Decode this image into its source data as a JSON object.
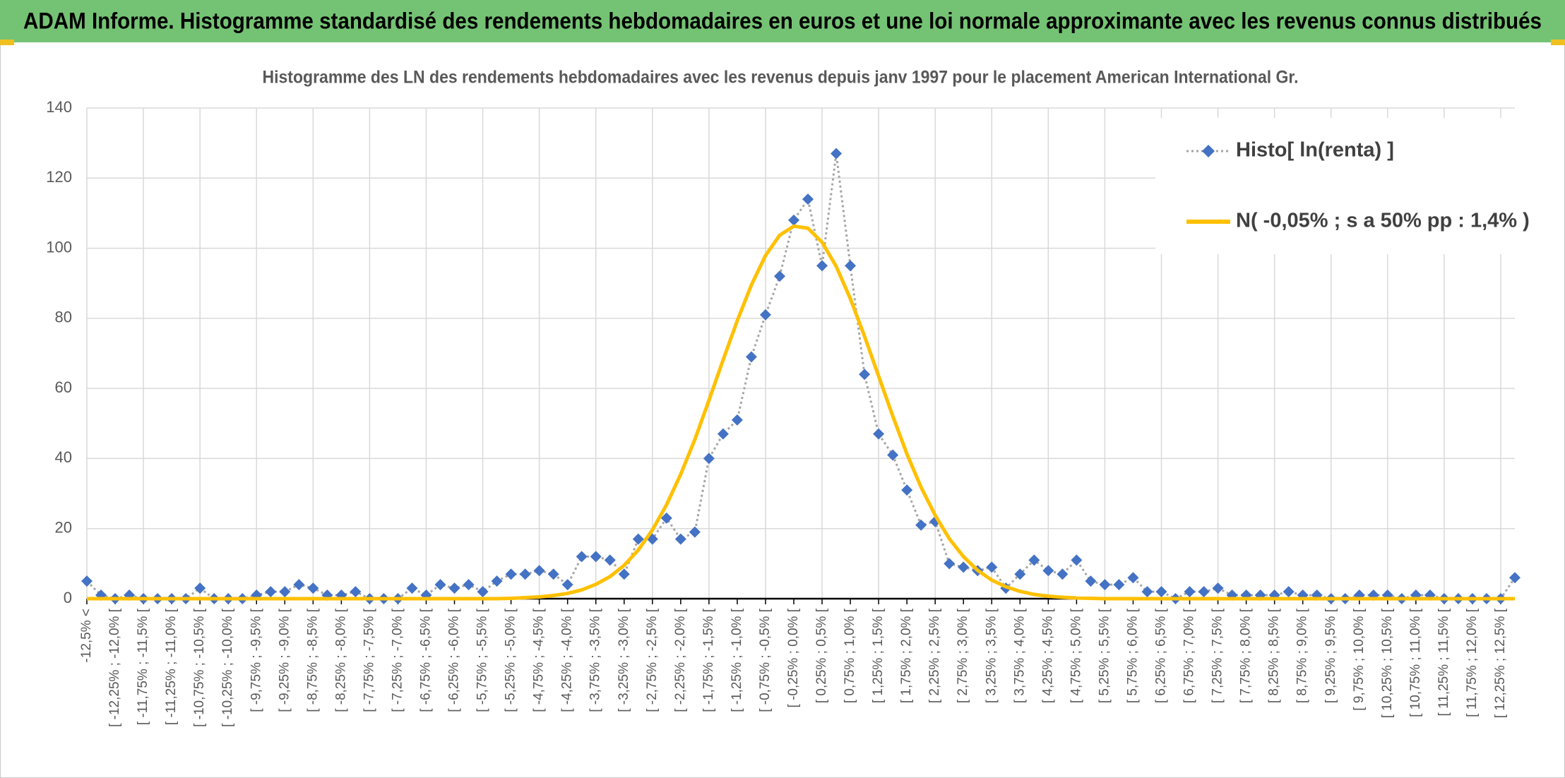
{
  "chart_data": {
    "type": "line",
    "title": "ADAM Informe. Histogramme standardisé des rendements hebdomadaires en euros et une loi normale approximante avec les revenus connus distribués",
    "subtitle": "Histogramme des LN des rendements hebdomadaires avec les revenus depuis janv 1997 pour le placement American International Gr.",
    "categories": [
      "-12,5% <",
      null,
      "[ -12,25% ; -12,0% [",
      null,
      "[ -11,75% ; -11,5% [",
      null,
      "[ -11,25% ; -11,0% [",
      null,
      "[ -10,75% ; -10,5% [",
      null,
      "[ -10,25% ; -10,0% [",
      null,
      "[ -9,75% ; -9,5% [",
      null,
      "[ -9,25% ; -9,0% [",
      null,
      "[ -8,75% ; -8,5% [",
      null,
      "[ -8,25% ; -8,0% [",
      null,
      "[ -7,75% ; -7,5% [",
      null,
      "[ -7,25% ; -7,0% [",
      null,
      "[ -6,75% ; -6,5% [",
      null,
      "[ -6,25% ; -6,0% [",
      null,
      "[ -5,75% ; -5,5% [",
      null,
      "[ -5,25% ; -5,0% [",
      null,
      "[ -4,75% ; -4,5% [",
      null,
      "[ -4,25% ; -4,0% [",
      null,
      "[ -3,75% ; -3,5% [",
      null,
      "[ -3,25% ; -3,0% [",
      null,
      "[ -2,75% ; -2,5% [",
      null,
      "[ -2,25% ; -2,0% [",
      null,
      "[ -1,75% ; -1,5% [",
      null,
      "[ -1,25% ; -1,0% [",
      null,
      "[ -0,75% ; -0,5% [",
      null,
      "[ -0,25% ; 0,0% [",
      null,
      "[ 0,25% ; 0,5% [",
      null,
      "[ 0,75% ; 1,0% [",
      null,
      "[ 1,25% ; 1,5% [",
      null,
      "[ 1,75% ; 2,0% [",
      null,
      "[ 2,25% ; 2,5% [",
      null,
      "[ 2,75% ; 3,0% [",
      null,
      "[ 3,25% ; 3,5% [",
      null,
      "[ 3,75% ; 4,0% [",
      null,
      "[ 4,25% ; 4,5% [",
      null,
      "[ 4,75% ; 5,0% [",
      null,
      "[ 5,25% ; 5,5% [",
      null,
      "[ 5,75% ; 6,0% [",
      null,
      "[ 6,25% ; 6,5% [",
      null,
      "[ 6,75% ; 7,0% [",
      null,
      "[ 7,25% ; 7,5% [",
      null,
      "[ 7,75% ; 8,0% [",
      null,
      "[ 8,25% ; 8,5% [",
      null,
      "[ 8,75% ; 9,0% [",
      null,
      "[ 9,25% ; 9,5% [",
      null,
      "[ 9,75% ; 10,0% [",
      null,
      "[ 10,25% ; 10,5% [",
      null,
      "[ 10,75% ; 11,0% [",
      null,
      "[ 11,25% ; 11,5% [",
      null,
      "[ 11,75% ; 12,0% [",
      null,
      "[ 12,25% ; 12,5% [",
      null
    ],
    "series": [
      {
        "name": "Histo[ ln(renta) ]",
        "color": "#4472c4",
        "line_color": "#a5a5a5",
        "marker": "diamond",
        "line_style": "dotted",
        "values": [
          5,
          1,
          0,
          1,
          0,
          0,
          0,
          0,
          3,
          0,
          0,
          0,
          1,
          2,
          2,
          4,
          3,
          1,
          1,
          2,
          0,
          0,
          0,
          3,
          1,
          4,
          3,
          4,
          2,
          5,
          7,
          7,
          8,
          7,
          4,
          12,
          12,
          11,
          7,
          17,
          17,
          23,
          17,
          19,
          40,
          47,
          51,
          69,
          81,
          92,
          108,
          114,
          95,
          127,
          95,
          64,
          47,
          41,
          31,
          21,
          22,
          10,
          9,
          8,
          9,
          3,
          7,
          11,
          8,
          7,
          11,
          5,
          4,
          4,
          6,
          2,
          2,
          0,
          2,
          2,
          3,
          1,
          1,
          1,
          1,
          2,
          1,
          1,
          0,
          0,
          1,
          1,
          1,
          0,
          1,
          1,
          0,
          0,
          0,
          0,
          0,
          6
        ]
      },
      {
        "name": "N( -0,05% ; s a 50% pp : 1,4% )",
        "color": "#ffc000",
        "line_style": "solid",
        "values": [
          0,
          0,
          0,
          0,
          0,
          0,
          0,
          0,
          0,
          0,
          0,
          0,
          0,
          0,
          0,
          0,
          0,
          0,
          0,
          0,
          0,
          0,
          0,
          0,
          0,
          0,
          0,
          0,
          0,
          0,
          0.1,
          0.3,
          0.5,
          0.9,
          1.5,
          2.5,
          4.1,
          6.3,
          9.5,
          13.9,
          19.6,
          26.8,
          35.5,
          45.4,
          56.6,
          68.1,
          79.3,
          89.5,
          97.9,
          103.7,
          106.3,
          105.7,
          101.7,
          94.8,
          85.6,
          74.9,
          63.5,
          52.1,
          41.3,
          31.8,
          23.8,
          17.1,
          12.0,
          8.1,
          5.3,
          3.4,
          2.1,
          1.2,
          0.7,
          0.4,
          0.2,
          0.1,
          0,
          0,
          0,
          0,
          0,
          0,
          0,
          0,
          0,
          0,
          0,
          0,
          0,
          0,
          0,
          0,
          0,
          0,
          0,
          0,
          0,
          0,
          0,
          0,
          0,
          0,
          0,
          0,
          0,
          0
        ]
      }
    ],
    "ylim": [
      0,
      140
    ],
    "yticks": [
      0,
      20,
      40,
      60,
      80,
      100,
      120,
      140
    ],
    "grid": true,
    "legend": "top-right"
  }
}
